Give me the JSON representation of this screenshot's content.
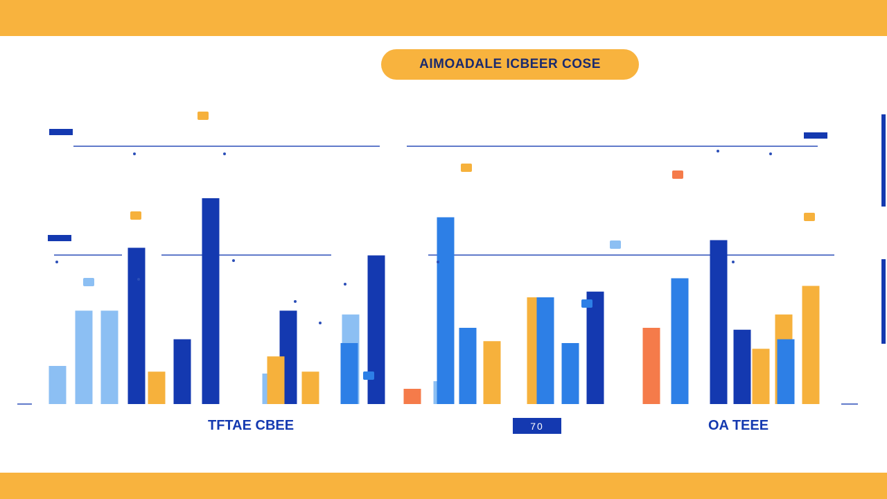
{
  "title": "AIMOADALE ICBEER COSE",
  "category_labels": [
    "TFTAE CBEE",
    "OA TEEE"
  ],
  "pager_text": "70",
  "colors": {
    "band": "#F8B33E",
    "pill": "#F8B33E",
    "title_text": "#1A2A6E",
    "navy": "#1439B0",
    "blue": "#2D7FE6",
    "light_blue": "#8CBFF3",
    "orange": "#F6B13C",
    "coral": "#F57B4A",
    "axis": "#2C4FB8"
  },
  "chart_data": {
    "type": "bar",
    "title": "AIMOADALE ICBEER COSE",
    "groups": [
      "TFTAE CBEE",
      "OA TEEE"
    ],
    "series": [
      {
        "color": "light_blue",
        "values": [
          {
            "x": 0.8,
            "y": 20
          },
          {
            "x": 4.6,
            "y": 49
          },
          {
            "x": 8.3,
            "y": 49
          },
          {
            "x": 31.6,
            "y": 16
          },
          {
            "x": 43.1,
            "y": 47
          },
          {
            "x": 56.3,
            "y": 12
          }
        ]
      },
      {
        "color": "navy",
        "values": [
          {
            "x": 12.2,
            "y": 82
          },
          {
            "x": 18.8,
            "y": 34
          },
          {
            "x": 22.9,
            "y": 108
          },
          {
            "x": 34.1,
            "y": 49
          },
          {
            "x": 46.8,
            "y": 78
          },
          {
            "x": 78.4,
            "y": 59
          },
          {
            "x": 96.2,
            "y": 86
          },
          {
            "x": 99.6,
            "y": 39
          }
        ]
      },
      {
        "color": "orange",
        "values": [
          {
            "x": 15.1,
            "y": 17
          },
          {
            "x": 32.3,
            "y": 25
          },
          {
            "x": 37.3,
            "y": 17
          },
          {
            "x": 63.5,
            "y": 33
          },
          {
            "x": 69.8,
            "y": 56
          },
          {
            "x": 102.3,
            "y": 29
          },
          {
            "x": 105.6,
            "y": 47
          },
          {
            "x": 109.5,
            "y": 62
          }
        ]
      },
      {
        "color": "blue",
        "values": [
          {
            "x": 42.9,
            "y": 32
          },
          {
            "x": 56.8,
            "y": 98
          },
          {
            "x": 60.0,
            "y": 40
          },
          {
            "x": 71.2,
            "y": 56
          },
          {
            "x": 74.8,
            "y": 32
          },
          {
            "x": 90.6,
            "y": 66
          },
          {
            "x": 105.9,
            "y": 34
          }
        ]
      },
      {
        "color": "coral",
        "values": [
          {
            "x": 52.0,
            "y": 8
          },
          {
            "x": 86.5,
            "y": 40
          }
        ]
      }
    ]
  }
}
